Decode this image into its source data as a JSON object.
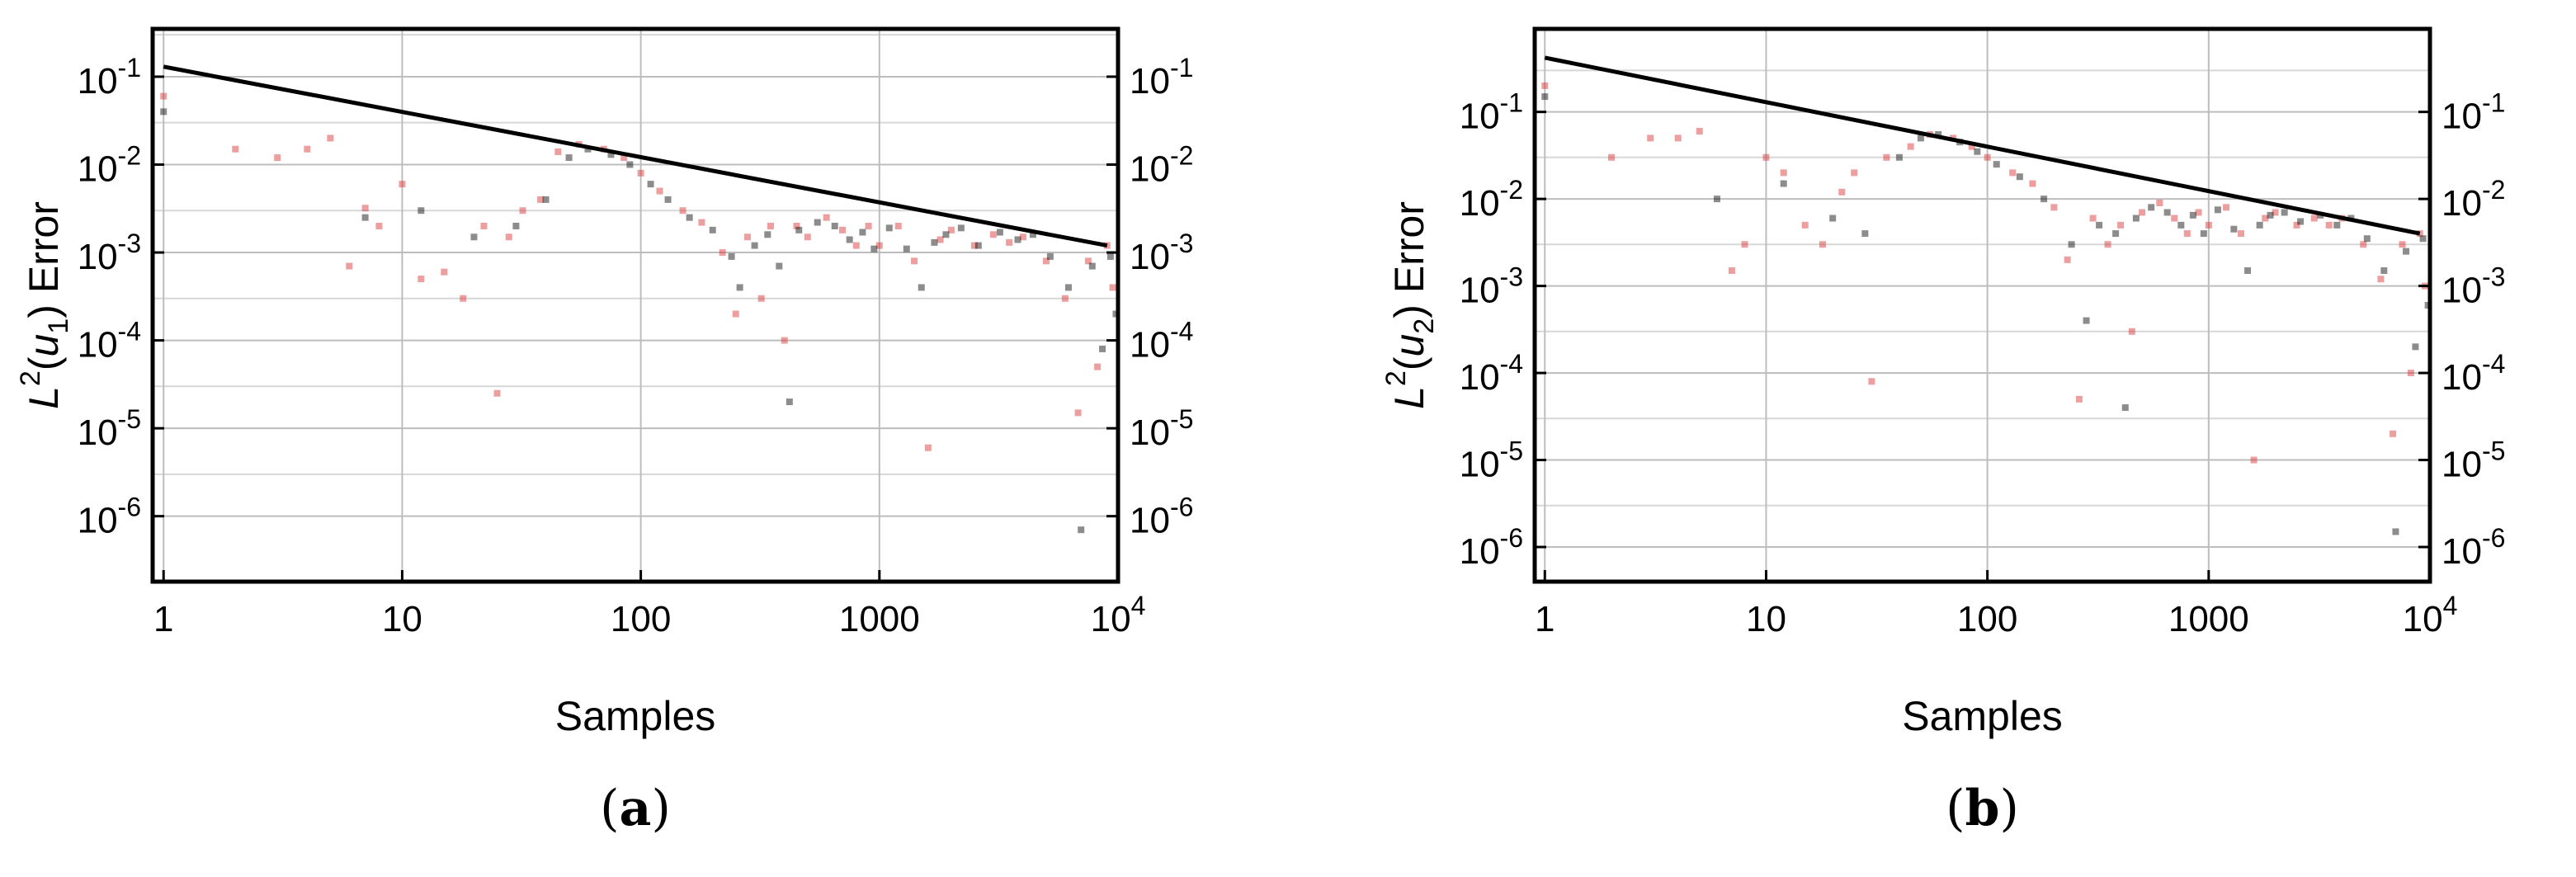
{
  "chart_data": [
    {
      "type": "scatter",
      "panel_label": "(a)",
      "xlabel": "Samples",
      "ylabel_base": "L",
      "ylabel_sup": "2",
      "ylabel_var": "u",
      "ylabel_sub": "1",
      "ylabel_suffix": "Error",
      "x_scale": "log",
      "y_scale": "log",
      "xlim": [
        0.9,
        10000
      ],
      "ylim": [
        1.8e-07,
        0.35
      ],
      "x_ticks": [
        {
          "value": 1,
          "label": "1"
        },
        {
          "value": 10,
          "label": "10"
        },
        {
          "value": 100,
          "label": "100"
        },
        {
          "value": 1000,
          "label": "1000"
        },
        {
          "value": 10000,
          "label": "10",
          "sup": "4"
        }
      ],
      "y_ticks": [
        {
          "value": 0.1,
          "label": "10",
          "sup": "-1"
        },
        {
          "value": 0.01,
          "label": "10",
          "sup": "-2"
        },
        {
          "value": 0.001,
          "label": "10",
          "sup": "-3"
        },
        {
          "value": 0.0001,
          "label": "10",
          "sup": "-4"
        },
        {
          "value": 1e-05,
          "label": "10",
          "sup": "-5"
        },
        {
          "value": 1e-06,
          "label": "10",
          "sup": "-6"
        }
      ],
      "grid": true,
      "reference_line": {
        "x": [
          1,
          9000
        ],
        "y": [
          0.13,
          0.0012
        ]
      },
      "series": [
        {
          "color": "#d62728",
          "points": [
            [
              1,
              0.06
            ],
            [
              2,
              0.015
            ],
            [
              3,
              0.012
            ],
            [
              4,
              0.015
            ],
            [
              5,
              0.02
            ],
            [
              6,
              0.0007
            ],
            [
              7,
              0.0032
            ],
            [
              8,
              0.002
            ],
            [
              10,
              0.006
            ],
            [
              12,
              0.0005
            ],
            [
              15,
              0.0006
            ],
            [
              18,
              0.0003
            ],
            [
              22,
              0.002
            ],
            [
              25,
              2.5e-05
            ],
            [
              28,
              0.0015
            ],
            [
              32,
              0.003
            ],
            [
              38,
              0.004
            ],
            [
              45,
              0.014
            ],
            [
              55,
              0.017
            ],
            [
              70,
              0.015
            ],
            [
              85,
              0.012
            ],
            [
              100,
              0.008
            ],
            [
              120,
              0.005
            ],
            [
              150,
              0.003
            ],
            [
              180,
              0.0022
            ],
            [
              220,
              0.001
            ],
            [
              250,
              0.0002
            ],
            [
              280,
              0.0015
            ],
            [
              320,
              0.0003
            ],
            [
              350,
              0.002
            ],
            [
              400,
              0.0001
            ],
            [
              450,
              0.002
            ],
            [
              500,
              0.0015
            ],
            [
              600,
              0.0025
            ],
            [
              700,
              0.0018
            ],
            [
              800,
              0.0012
            ],
            [
              900,
              0.002
            ],
            [
              1000,
              0.0012
            ],
            [
              1200,
              0.002
            ],
            [
              1400,
              0.0008
            ],
            [
              1600,
              6e-06
            ],
            [
              1800,
              0.0014
            ],
            [
              2000,
              0.0018
            ],
            [
              2500,
              0.0012
            ],
            [
              3000,
              0.0016
            ],
            [
              3500,
              0.0013
            ],
            [
              4000,
              0.0015
            ],
            [
              5000,
              0.0008
            ],
            [
              6000,
              0.0003
            ],
            [
              6800,
              1.5e-05
            ],
            [
              7500,
              0.0008
            ],
            [
              8200,
              5e-05
            ],
            [
              9000,
              0.0012
            ],
            [
              9500,
              0.0004
            ]
          ]
        },
        {
          "color": "#000000",
          "points": [
            [
              1,
              0.04
            ],
            [
              7,
              0.0025
            ],
            [
              12,
              0.003
            ],
            [
              20,
              0.0015
            ],
            [
              30,
              0.002
            ],
            [
              40,
              0.004
            ],
            [
              50,
              0.012
            ],
            [
              60,
              0.015
            ],
            [
              75,
              0.013
            ],
            [
              90,
              0.01
            ],
            [
              110,
              0.006
            ],
            [
              130,
              0.004
            ],
            [
              160,
              0.0025
            ],
            [
              200,
              0.0018
            ],
            [
              240,
              0.0009
            ],
            [
              260,
              0.0004
            ],
            [
              300,
              0.0012
            ],
            [
              340,
              0.0016
            ],
            [
              380,
              0.0007
            ],
            [
              420,
              2e-05
            ],
            [
              460,
              0.0018
            ],
            [
              550,
              0.0022
            ],
            [
              650,
              0.002
            ],
            [
              750,
              0.0014
            ],
            [
              850,
              0.0017
            ],
            [
              950,
              0.0011
            ],
            [
              1100,
              0.0019
            ],
            [
              1300,
              0.0011
            ],
            [
              1500,
              0.0004
            ],
            [
              1700,
              0.0013
            ],
            [
              1900,
              0.0016
            ],
            [
              2200,
              0.0019
            ],
            [
              2600,
              0.0012
            ],
            [
              3200,
              0.0017
            ],
            [
              3800,
              0.0014
            ],
            [
              4400,
              0.0016
            ],
            [
              5200,
              0.0009
            ],
            [
              6200,
              0.0004
            ],
            [
              7000,
              7e-07
            ],
            [
              7800,
              0.0007
            ],
            [
              8600,
              8e-05
            ],
            [
              9300,
              0.0009
            ],
            [
              9800,
              0.0002
            ]
          ]
        }
      ]
    },
    {
      "type": "scatter",
      "panel_label": "(b)",
      "xlabel": "Samples",
      "ylabel_base": "L",
      "ylabel_sup": "2",
      "ylabel_var": "u",
      "ylabel_sub": "2",
      "ylabel_suffix": "Error",
      "x_scale": "log",
      "y_scale": "log",
      "xlim": [
        0.9,
        10000
      ],
      "ylim": [
        4e-07,
        0.9
      ],
      "x_ticks": [
        {
          "value": 1,
          "label": "1"
        },
        {
          "value": 10,
          "label": "10"
        },
        {
          "value": 100,
          "label": "100"
        },
        {
          "value": 1000,
          "label": "1000"
        },
        {
          "value": 10000,
          "label": "10",
          "sup": "4"
        }
      ],
      "y_ticks": [
        {
          "value": 0.1,
          "label": "10",
          "sup": "-1"
        },
        {
          "value": 0.01,
          "label": "10",
          "sup": "-2"
        },
        {
          "value": 0.001,
          "label": "10",
          "sup": "-3"
        },
        {
          "value": 0.0001,
          "label": "10",
          "sup": "-4"
        },
        {
          "value": 1e-05,
          "label": "10",
          "sup": "-5"
        },
        {
          "value": 1e-06,
          "label": "10",
          "sup": "-6"
        }
      ],
      "grid": true,
      "reference_line": {
        "x": [
          1,
          9000
        ],
        "y": [
          0.42,
          0.004
        ]
      },
      "series": [
        {
          "color": "#d62728",
          "points": [
            [
              1,
              0.2
            ],
            [
              2,
              0.03
            ],
            [
              3,
              0.05
            ],
            [
              4,
              0.05
            ],
            [
              5,
              0.06
            ],
            [
              7,
              0.0015
            ],
            [
              8,
              0.003
            ],
            [
              10,
              0.03
            ],
            [
              12,
              0.02
            ],
            [
              15,
              0.005
            ],
            [
              18,
              0.003
            ],
            [
              22,
              0.012
            ],
            [
              25,
              0.02
            ],
            [
              30,
              8e-05
            ],
            [
              35,
              0.03
            ],
            [
              45,
              0.04
            ],
            [
              55,
              0.055
            ],
            [
              70,
              0.05
            ],
            [
              85,
              0.04
            ],
            [
              100,
              0.03
            ],
            [
              130,
              0.02
            ],
            [
              160,
              0.015
            ],
            [
              200,
              0.008
            ],
            [
              230,
              0.002
            ],
            [
              260,
              5e-05
            ],
            [
              300,
              0.006
            ],
            [
              350,
              0.003
            ],
            [
              400,
              0.005
            ],
            [
              450,
              0.0003
            ],
            [
              500,
              0.007
            ],
            [
              600,
              0.009
            ],
            [
              700,
              0.006
            ],
            [
              800,
              0.004
            ],
            [
              900,
              0.007
            ],
            [
              1000,
              0.005
            ],
            [
              1200,
              0.008
            ],
            [
              1400,
              0.004
            ],
            [
              1600,
              1e-05
            ],
            [
              1800,
              0.006
            ],
            [
              2000,
              0.007
            ],
            [
              2500,
              0.005
            ],
            [
              3000,
              0.006
            ],
            [
              3500,
              0.005
            ],
            [
              4000,
              0.006
            ],
            [
              5000,
              0.003
            ],
            [
              6000,
              0.0012
            ],
            [
              6800,
              2e-05
            ],
            [
              7500,
              0.003
            ],
            [
              8200,
              0.0001
            ],
            [
              9000,
              0.004
            ],
            [
              9500,
              0.001
            ]
          ]
        },
        {
          "color": "#000000",
          "points": [
            [
              1,
              0.15
            ],
            [
              6,
              0.01
            ],
            [
              12,
              0.015
            ],
            [
              20,
              0.006
            ],
            [
              28,
              0.004
            ],
            [
              40,
              0.03
            ],
            [
              50,
              0.05
            ],
            [
              60,
              0.055
            ],
            [
              75,
              0.045
            ],
            [
              90,
              0.035
            ],
            [
              110,
              0.025
            ],
            [
              140,
              0.018
            ],
            [
              180,
              0.01
            ],
            [
              240,
              0.003
            ],
            [
              280,
              0.0004
            ],
            [
              320,
              0.005
            ],
            [
              380,
              0.004
            ],
            [
              420,
              4e-05
            ],
            [
              470,
              0.006
            ],
            [
              550,
              0.008
            ],
            [
              650,
              0.007
            ],
            [
              750,
              0.005
            ],
            [
              850,
              0.0065
            ],
            [
              950,
              0.004
            ],
            [
              1100,
              0.0075
            ],
            [
              1300,
              0.0045
            ],
            [
              1500,
              0.0015
            ],
            [
              1700,
              0.005
            ],
            [
              1900,
              0.0065
            ],
            [
              2200,
              0.007
            ],
            [
              2600,
              0.0055
            ],
            [
              3200,
              0.0065
            ],
            [
              3800,
              0.005
            ],
            [
              4400,
              0.006
            ],
            [
              5200,
              0.0035
            ],
            [
              6200,
              0.0015
            ],
            [
              7000,
              1.5e-06
            ],
            [
              7800,
              0.0025
            ],
            [
              8600,
              0.0002
            ],
            [
              9300,
              0.0035
            ],
            [
              9800,
              0.0006
            ]
          ]
        }
      ]
    }
  ]
}
